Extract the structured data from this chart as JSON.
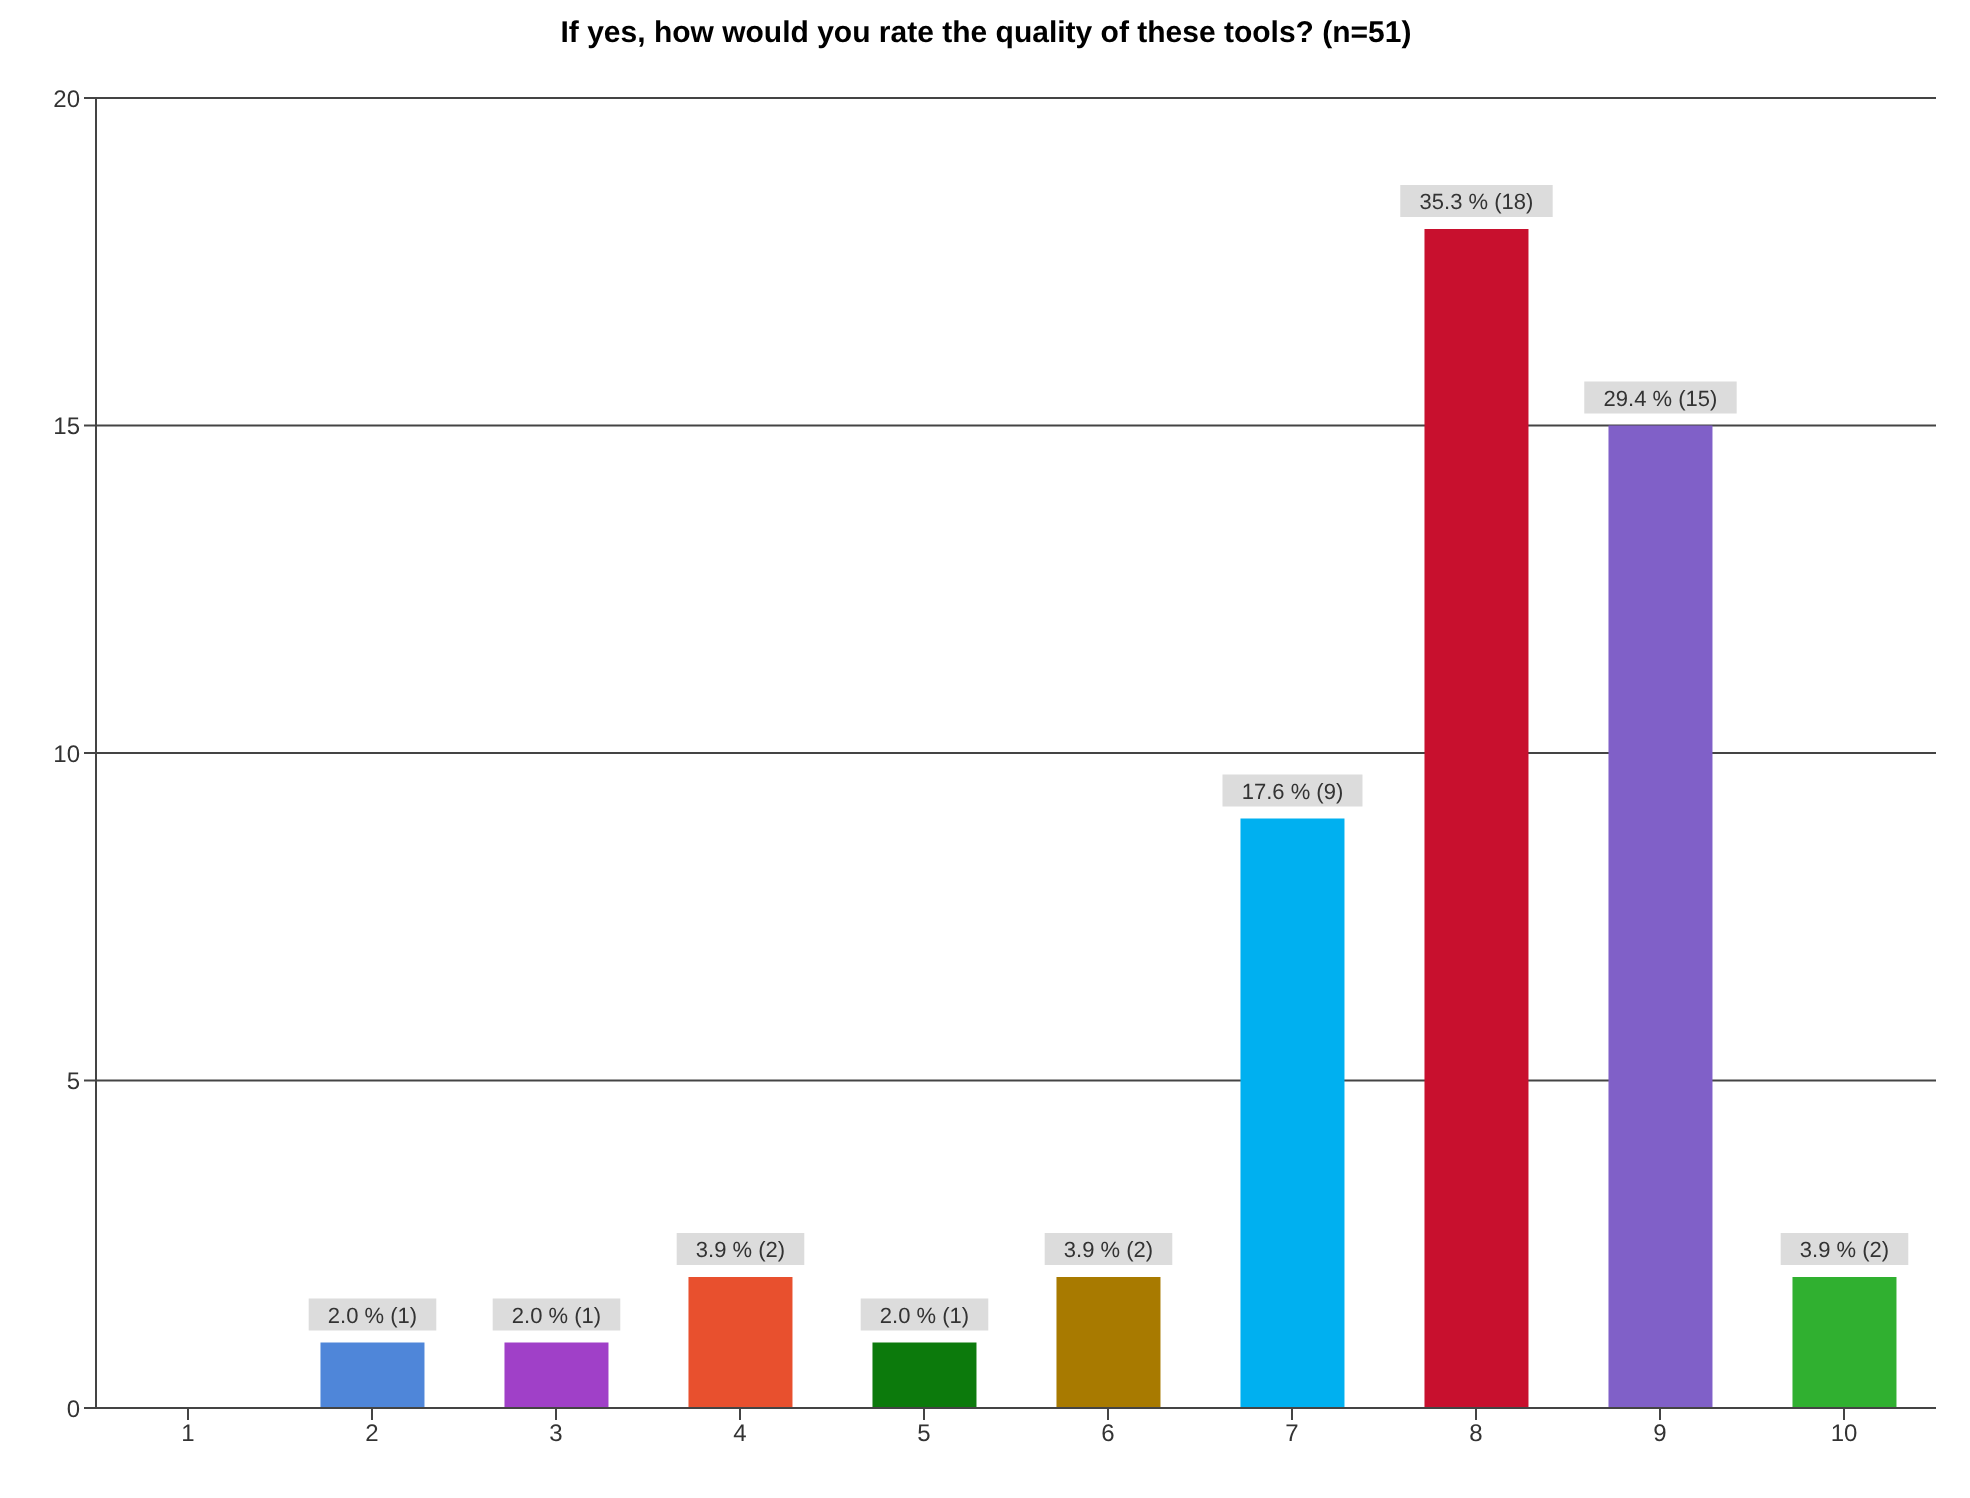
{
  "chart_data": {
    "type": "bar",
    "title": "If yes, how would you rate the quality of these tools? (n=51)",
    "categories": [
      "1",
      "2",
      "3",
      "4",
      "5",
      "6",
      "7",
      "8",
      "9",
      "10"
    ],
    "values": [
      0,
      1,
      1,
      2,
      1,
      2,
      9,
      18,
      15,
      2
    ],
    "colors": [
      "#4f86d9",
      "#4f86d9",
      "#a040c8",
      "#e8502e",
      "#0c7a0c",
      "#a87a00",
      "#00b0f0",
      "#c8102e",
      "#8060c8",
      "#30b030"
    ],
    "value_labels": [
      null,
      "2.0 % (1)",
      "2.0 % (1)",
      "3.9 % (2)",
      "2.0 % (1)",
      "3.9 % (2)",
      "17.6 % (9)",
      "35.3 % (18)",
      "29.4 % (15)",
      "3.9 % (2)"
    ],
    "ylim": [
      0,
      20
    ],
    "yticks": [
      0,
      5,
      10,
      15,
      20
    ],
    "grid": "y"
  }
}
